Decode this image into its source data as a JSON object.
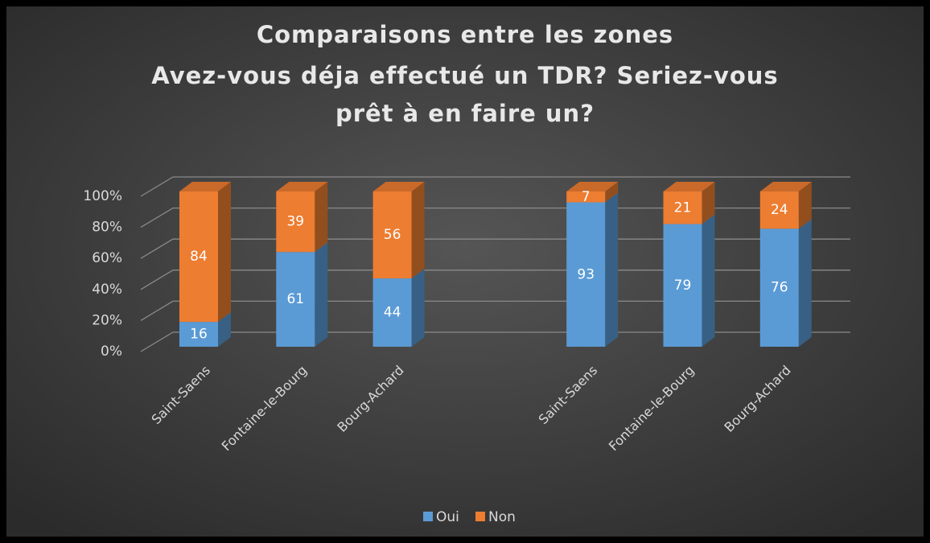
{
  "chart_data": {
    "type": "bar",
    "stacked": true,
    "title": [
      "Comparaisons entre les zones",
      "Avez-vous déja effectué un TDR? Seriez-vous",
      "prêt à en faire un?"
    ],
    "categories": [
      "Saint-Saens",
      "Fontaine-le-Bourg",
      "Bourg-Achard",
      null,
      "Saint-Saens",
      "Fontaine-le-Bourg",
      "Bourg-Achard"
    ],
    "series": [
      {
        "name": "Oui",
        "color": "#5b9bd5",
        "values": [
          16,
          61,
          44,
          null,
          93,
          79,
          76
        ]
      },
      {
        "name": "Non",
        "color": "#ed7d31",
        "values": [
          84,
          39,
          56,
          null,
          7,
          21,
          24
        ]
      }
    ],
    "ylim": [
      0,
      100
    ],
    "yticks": [
      {
        "value": 0,
        "label": "0%"
      },
      {
        "value": 20,
        "label": "20%"
      },
      {
        "value": 40,
        "label": "40%"
      },
      {
        "value": 60,
        "label": "60%"
      },
      {
        "value": 80,
        "label": "80%"
      },
      {
        "value": 100,
        "label": "100%"
      }
    ],
    "grid": true,
    "legend": "bottom"
  }
}
